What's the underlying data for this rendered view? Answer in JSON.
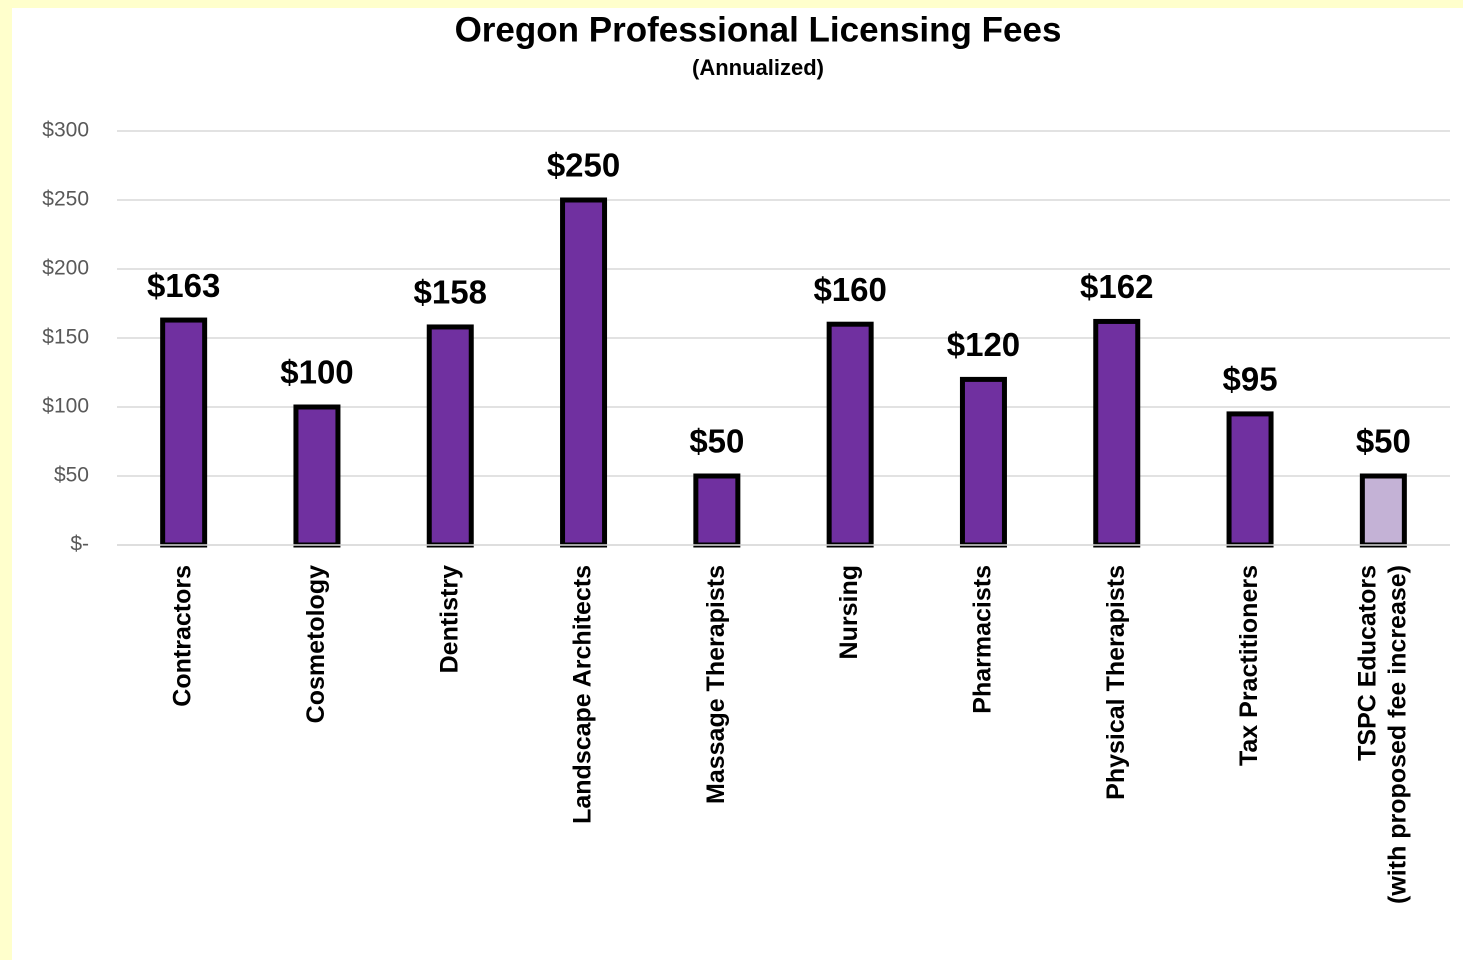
{
  "chart_data": {
    "type": "bar",
    "title": "Oregon Professional Licensing Fees",
    "subtitle": "(Annualized)",
    "categories": [
      "Contractors",
      "Cosmetology",
      "Dentistry",
      "Landscape Architects",
      "Massage Therapists",
      "Nursing",
      "Pharmacists",
      "Physical Therapists",
      "Tax Practitioners",
      "TSPC Educators\n(with proposed fee increase)"
    ],
    "values": [
      163,
      100,
      158,
      250,
      50,
      160,
      120,
      162,
      95,
      50
    ],
    "value_labels": [
      "$163",
      "$100",
      "$158",
      "$250",
      "$50",
      "$160",
      "$120",
      "$162",
      "$95",
      "$50"
    ],
    "colors": [
      "#7030a0",
      "#7030a0",
      "#7030a0",
      "#7030a0",
      "#7030a0",
      "#7030a0",
      "#7030a0",
      "#7030a0",
      "#7030a0",
      "#c4b2d6"
    ],
    "ylim": [
      0,
      300
    ],
    "yticks": [
      {
        "value": 0,
        "label": "$-"
      },
      {
        "value": 50,
        "label": "$50"
      },
      {
        "value": 100,
        "label": "$100"
      },
      {
        "value": 150,
        "label": "$150"
      },
      {
        "value": 200,
        "label": "$200"
      },
      {
        "value": 250,
        "label": "$250"
      },
      {
        "value": 300,
        "label": "$300"
      }
    ],
    "grid": true
  }
}
